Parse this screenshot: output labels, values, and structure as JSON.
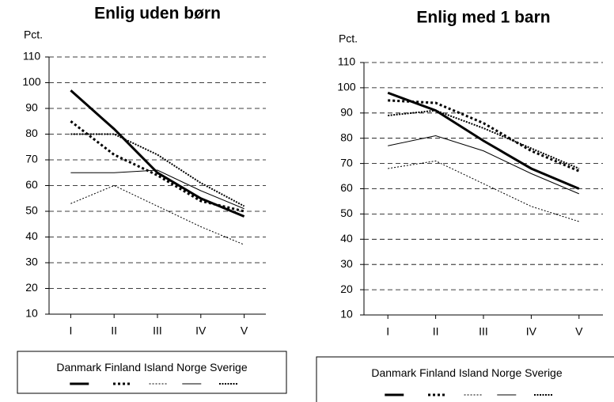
{
  "chart_data": [
    {
      "type": "line",
      "title": "Enlig uden børn",
      "y_label": "Pct.",
      "categories": [
        "I",
        "II",
        "III",
        "IV",
        "V"
      ],
      "ylim": [
        10,
        110
      ],
      "yticks": [
        10,
        20,
        30,
        40,
        50,
        60,
        70,
        80,
        90,
        100,
        110
      ],
      "grid": true,
      "series": [
        {
          "name": "Danmark",
          "color": "#000000",
          "values": [
            97,
            82,
            65,
            55,
            48
          ]
        },
        {
          "name": "Finland",
          "color": "#000000",
          "values": [
            85,
            72,
            64,
            54,
            50
          ]
        },
        {
          "name": "Island",
          "color": "#000000",
          "values": [
            53,
            60,
            52,
            44,
            37
          ]
        },
        {
          "name": "Norge",
          "color": "#000000",
          "values": [
            65,
            65,
            66,
            58,
            51
          ]
        },
        {
          "name": "Sverige",
          "color": "#000000",
          "values": [
            80,
            80,
            72,
            61,
            52
          ]
        }
      ]
    },
    {
      "type": "line",
      "title": "Enlig med 1 barn",
      "y_label": "Pct.",
      "categories": [
        "I",
        "II",
        "III",
        "IV",
        "V"
      ],
      "ylim": [
        10,
        110
      ],
      "yticks": [
        10,
        20,
        30,
        40,
        50,
        60,
        70,
        80,
        90,
        100,
        110
      ],
      "grid": true,
      "series": [
        {
          "name": "Danmark",
          "color": "#000000",
          "values": [
            98,
            91,
            79,
            68,
            60
          ]
        },
        {
          "name": "Finland",
          "color": "#000000",
          "values": [
            95,
            94,
            86,
            75,
            67
          ]
        },
        {
          "name": "Island",
          "color": "#000000",
          "values": [
            68,
            71,
            62,
            53,
            47
          ]
        },
        {
          "name": "Norge",
          "color": "#000000",
          "values": [
            77,
            81,
            75,
            66,
            58
          ]
        },
        {
          "name": "Sverige",
          "color": "#000000",
          "values": [
            89,
            91,
            84,
            76,
            68
          ]
        }
      ]
    }
  ]
}
